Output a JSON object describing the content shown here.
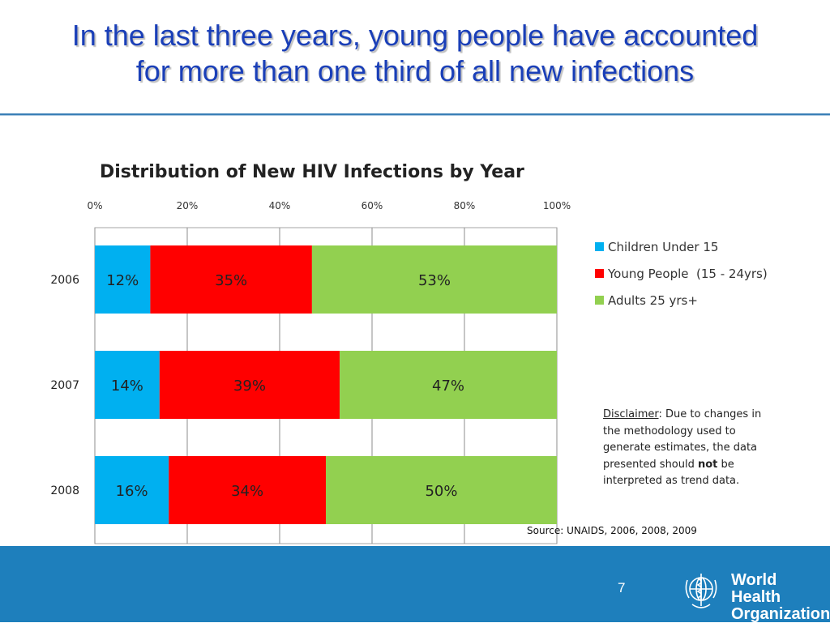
{
  "slide": {
    "title_line1": "In the last three years, young people have accounted",
    "title_line2": "for more than one third of all new infections",
    "page_number": "7",
    "org_name_line1": "World Health",
    "org_name_line2": "Organization",
    "title_color": "#1a3fb8",
    "footer_color": "#1e7fbc"
  },
  "chart_data": {
    "type": "bar",
    "orientation": "horizontal",
    "stacked": true,
    "title": "Distribution of New HIV Infections by Year",
    "categories": [
      "2006",
      "2007",
      "2008"
    ],
    "series": [
      {
        "name": "Children Under 15",
        "color": "#00b0f0",
        "values": [
          12,
          14,
          16
        ],
        "labels": [
          "12%",
          "14%",
          "16%"
        ]
      },
      {
        "name": "Young People  (15 - 24yrs)",
        "color": "#ff0000",
        "values": [
          35,
          39,
          34
        ],
        "labels": [
          "35%",
          "39%",
          "34%"
        ]
      },
      {
        "name": "Adults 25 yrs+",
        "color": "#92d050",
        "values": [
          53,
          47,
          50
        ],
        "labels": [
          "53%",
          "47%",
          "50%"
        ]
      }
    ],
    "xlim": [
      0,
      100
    ],
    "xticks": [
      "0%",
      "20%",
      "40%",
      "60%",
      "80%",
      "100%"
    ],
    "axis_position": "top",
    "grid": true,
    "legend_position": "right",
    "source": "Source: UNAIDS, 2006, 2008, 2009"
  },
  "disclaimer": {
    "heading": "Disclaimer",
    "text_before": ": Due to changes in the methodology used to generate estimates, the data presented should ",
    "emphasis": "not",
    "text_after": " be interpreted as trend data."
  }
}
